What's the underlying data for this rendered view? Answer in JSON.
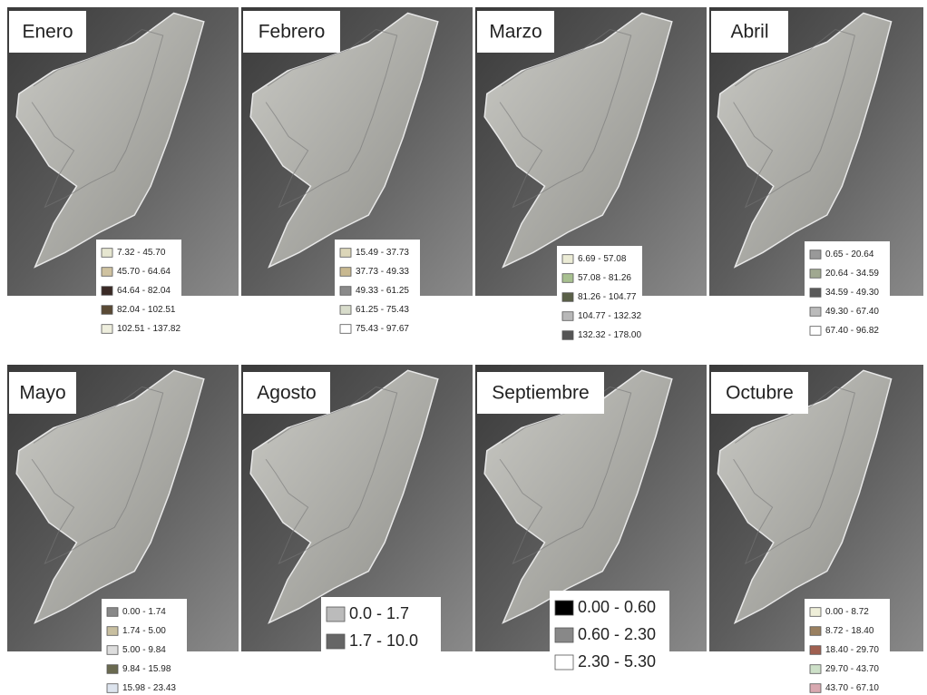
{
  "panels": [
    {
      "title": "Enero",
      "legend": [
        {
          "label": "7.32 - 45.70",
          "color": "#e6e6d0"
        },
        {
          "label": "45.70 - 64.64",
          "color": "#cfc2a0"
        },
        {
          "label": "64.64 - 82.04",
          "color": "#3a2a25"
        },
        {
          "label": "82.04 - 102.51",
          "color": "#5a4a35"
        },
        {
          "label": "102.51 - 137.82",
          "color": "#eeeedd"
        }
      ]
    },
    {
      "title": "Febrero",
      "legend": [
        {
          "label": "15.49 - 37.73",
          "color": "#dcd6b8"
        },
        {
          "label": "37.73 - 49.33",
          "color": "#c8b890"
        },
        {
          "label": "49.33 - 61.25",
          "color": "#8a8a8a"
        },
        {
          "label": "61.25 - 75.43",
          "color": "#d8dccb"
        },
        {
          "label": "75.43 - 97.67",
          "color": "#ffffff"
        }
      ]
    },
    {
      "title": "Marzo",
      "legend": [
        {
          "label": "6.69 - 57.08",
          "color": "#ebebd5"
        },
        {
          "label": "57.08 - 81.26",
          "color": "#a8c090"
        },
        {
          "label": "81.26 - 104.77",
          "color": "#5a6048"
        },
        {
          "label": "104.77 - 132.32",
          "color": "#b8b8b8"
        },
        {
          "label": "132.32 - 178.00",
          "color": "#555555"
        }
      ]
    },
    {
      "title": "Abril",
      "legend": [
        {
          "label": "0.65 - 20.64",
          "color": "#999999"
        },
        {
          "label": "20.64 - 34.59",
          "color": "#a0a890"
        },
        {
          "label": "34.59 - 49.30",
          "color": "#5a5a5a"
        },
        {
          "label": "49.30 - 67.40",
          "color": "#bbbbbb"
        },
        {
          "label": "67.40 - 96.82",
          "color": "#ffffff"
        }
      ]
    },
    {
      "title": "Mayo",
      "legend": [
        {
          "label": "0.00 - 1.74",
          "color": "#888888"
        },
        {
          "label": "1.74 - 5.00",
          "color": "#c8bfa0"
        },
        {
          "label": "5.00 - 9.84",
          "color": "#dddddd"
        },
        {
          "label": "9.84 - 15.98",
          "color": "#6a6a50"
        },
        {
          "label": "15.98 - 23.43",
          "color": "#dde4ee"
        }
      ]
    },
    {
      "title": "Agosto",
      "legend": [
        {
          "label": "0.0 - 1.7",
          "color": "#bbbbbb"
        },
        {
          "label": "1.7 - 10.0",
          "color": "#666666"
        }
      ]
    },
    {
      "title": "Septiembre",
      "legend": [
        {
          "label": "0.00 - 0.60",
          "color": "#000000"
        },
        {
          "label": "0.60 - 2.30",
          "color": "#888888"
        },
        {
          "label": "2.30 - 5.30",
          "color": "#ffffff"
        }
      ]
    },
    {
      "title": "Octubre",
      "legend": [
        {
          "label": "0.00 - 8.72",
          "color": "#eeeed8"
        },
        {
          "label": "8.72 - 18.40",
          "color": "#9a8060"
        },
        {
          "label": "18.40 - 29.70",
          "color": "#a06050"
        },
        {
          "label": "29.70 - 43.70",
          "color": "#cde0c8"
        },
        {
          "label": "43.70 - 67.10",
          "color": "#d8a8b0"
        }
      ]
    }
  ]
}
